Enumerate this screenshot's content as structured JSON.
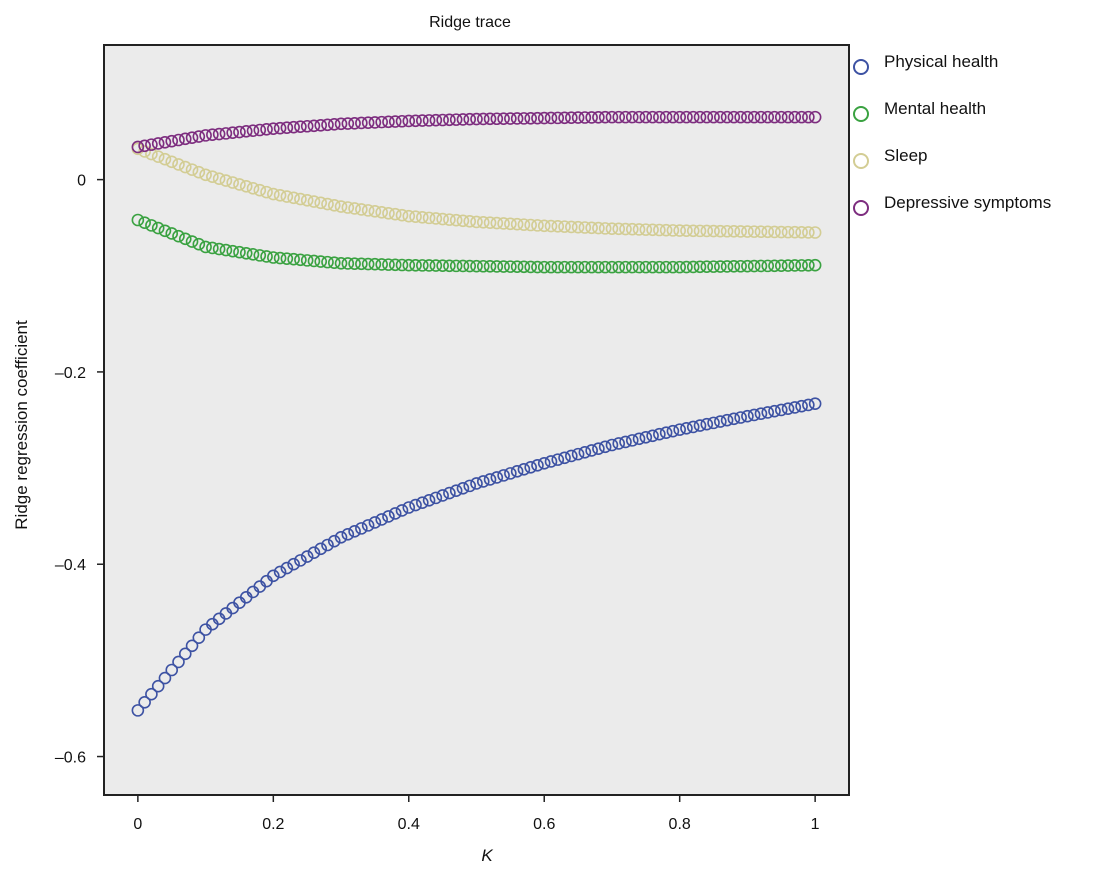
{
  "chart_data": {
    "type": "scatter",
    "title": "Ridge trace",
    "xlabel": "K",
    "ylabel": "Ridge regression coefficient",
    "xlim": [
      -0.05,
      1.05
    ],
    "ylim": [
      -0.64,
      0.14
    ],
    "xticks": [
      0,
      0.2,
      0.4,
      0.6,
      0.8,
      1
    ],
    "xtick_labels": [
      "0",
      "0.2",
      "0.4",
      "0.6",
      "0.8",
      "1"
    ],
    "yticks": [
      0,
      -0.2,
      -0.4,
      -0.6
    ],
    "ytick_labels": [
      "0",
      "–0.2",
      "–0.4",
      "–0.6"
    ],
    "grid": false,
    "legend_position": "right",
    "marker": "open-circle",
    "k_step": 0.01,
    "series": [
      {
        "name": "Physical health",
        "color": "#3d52a3",
        "anchors": {
          "k": [
            0,
            0.1,
            0.2,
            0.3,
            0.4,
            0.5,
            0.6,
            0.7,
            0.8,
            0.9,
            1.0
          ],
          "coef": [
            -0.552,
            -0.468,
            -0.412,
            -0.372,
            -0.341,
            -0.316,
            -0.295,
            -0.276,
            -0.26,
            -0.246,
            -0.233
          ]
        }
      },
      {
        "name": "Mental health",
        "color": "#3aa241",
        "anchors": {
          "k": [
            0,
            0.1,
            0.2,
            0.3,
            0.4,
            0.5,
            0.6,
            0.7,
            0.8,
            0.9,
            1.0
          ],
          "coef": [
            -0.042,
            -0.07,
            -0.081,
            -0.087,
            -0.089,
            -0.09,
            -0.091,
            -0.091,
            -0.091,
            -0.09,
            -0.089
          ]
        }
      },
      {
        "name": "Sleep",
        "color": "#d3cd94",
        "anchors": {
          "k": [
            0,
            0.1,
            0.2,
            0.3,
            0.4,
            0.5,
            0.6,
            0.7,
            0.8,
            0.9,
            1.0
          ],
          "coef": [
            0.032,
            0.005,
            -0.015,
            -0.028,
            -0.038,
            -0.044,
            -0.048,
            -0.051,
            -0.053,
            -0.054,
            -0.055
          ]
        }
      },
      {
        "name": "Depressive symptoms",
        "color": "#7d2d7f",
        "anchors": {
          "k": [
            0,
            0.1,
            0.2,
            0.3,
            0.4,
            0.5,
            0.6,
            0.7,
            0.8,
            0.9,
            1.0
          ],
          "coef": [
            0.034,
            0.046,
            0.053,
            0.058,
            0.061,
            0.063,
            0.064,
            0.065,
            0.065,
            0.065,
            0.065
          ]
        }
      }
    ]
  }
}
